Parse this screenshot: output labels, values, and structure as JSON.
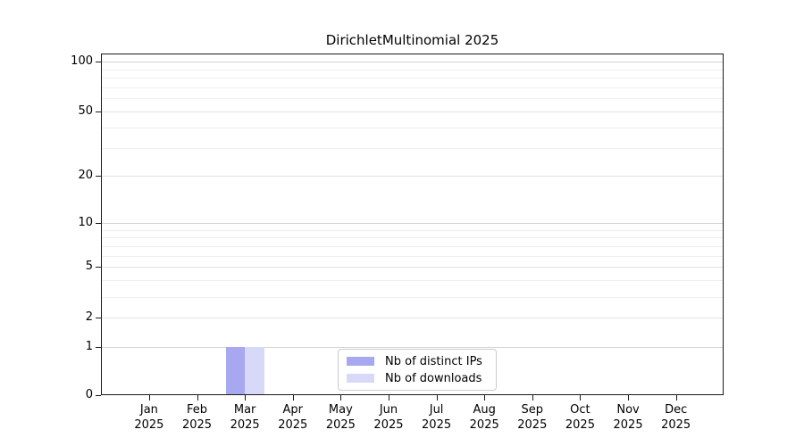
{
  "title": "DirichletMultinomial 2025",
  "chart_data": {
    "type": "bar",
    "title": "DirichletMultinomial 2025",
    "xlabel": "",
    "ylabel": "",
    "year": "2025",
    "categories": [
      "Jan",
      "Feb",
      "Mar",
      "Apr",
      "May",
      "Jun",
      "Jul",
      "Aug",
      "Sep",
      "Oct",
      "Nov",
      "Dec"
    ],
    "series": [
      {
        "name": "Nb of distinct IPs",
        "color": "#a8a8f0",
        "values": [
          0,
          0,
          1,
          0,
          0,
          0,
          0,
          0,
          0,
          0,
          0,
          0
        ]
      },
      {
        "name": "Nb of downloads",
        "color": "#d8d8f8",
        "values": [
          0,
          0,
          1,
          0,
          0,
          0,
          0,
          0,
          0,
          0,
          0,
          0
        ]
      }
    ],
    "y_ticks": [
      0,
      1,
      2,
      5,
      10,
      20,
      50,
      100
    ],
    "y_major_grid": [
      1,
      10,
      100
    ],
    "y_mid_grid": [
      2,
      5,
      20,
      50
    ],
    "y_minor_grid": [
      3,
      4,
      6,
      7,
      8,
      9,
      30,
      40,
      60,
      70,
      80,
      90
    ],
    "yscale": "log1p",
    "ylim": [
      0,
      112
    ],
    "grid": true,
    "legend_position": "lower center"
  }
}
